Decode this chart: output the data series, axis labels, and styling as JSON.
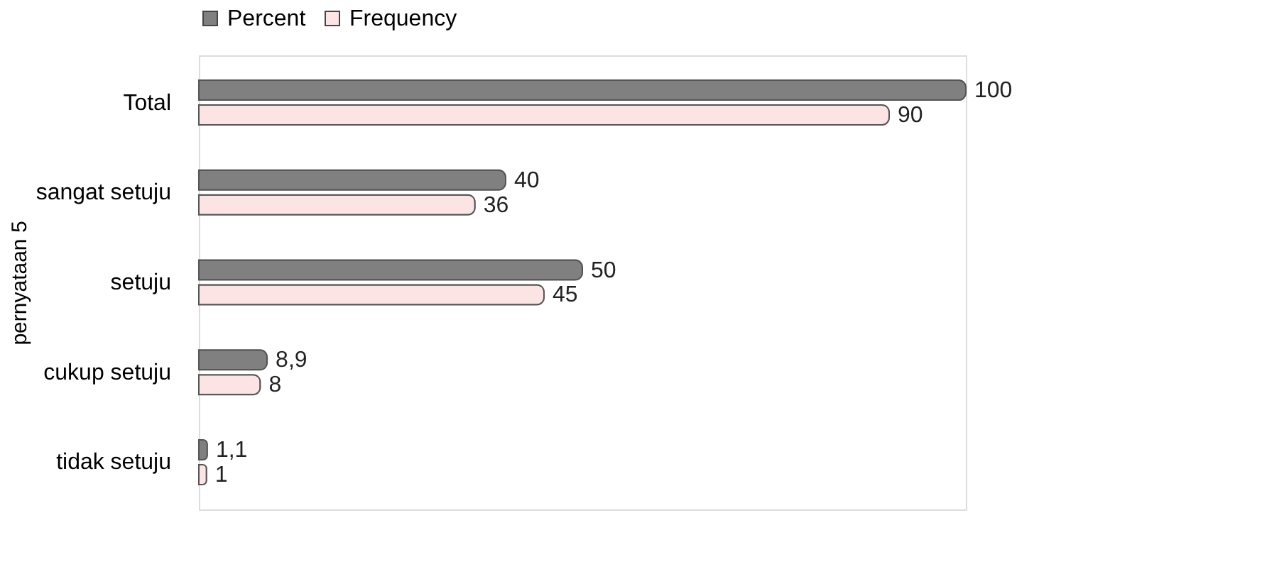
{
  "chart_data": {
    "type": "bar",
    "orientation": "horizontal",
    "ylabel": "pernyataan 5",
    "categories": [
      "Total",
      "sangat setuju",
      "setuju",
      "cukup setuju",
      "tidak setuju"
    ],
    "series": [
      {
        "name": "Percent",
        "color": "#808080",
        "values": [
          100,
          40,
          50,
          8.9,
          1.1
        ],
        "value_labels": [
          "100",
          "40",
          "50",
          "8,9",
          "1,1"
        ]
      },
      {
        "name": "Frequency",
        "color": "#fce4e4",
        "values": [
          90,
          36,
          45,
          8,
          1
        ],
        "value_labels": [
          "90",
          "36",
          "45",
          "8",
          "1"
        ]
      }
    ],
    "legend": "top"
  }
}
